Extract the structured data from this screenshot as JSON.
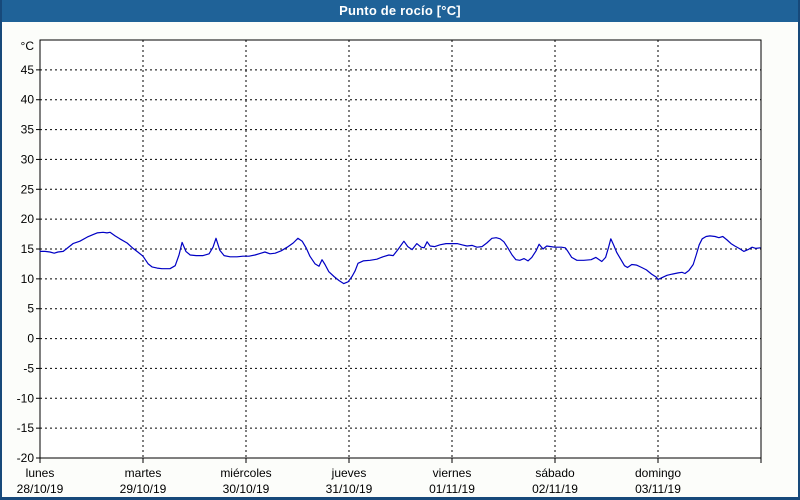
{
  "window": {
    "title": "Punto de rocío [°C]"
  },
  "colors": {
    "titlebar_bg": "#1F6298",
    "window_border": "#17497A",
    "panel_bg": "#FCFDFA",
    "plot_bg": "#FFFFFF",
    "plot_border": "#000000",
    "grid": "#000000",
    "line": "#0000C4",
    "text": "#000000",
    "title_text": "#FFFFFF"
  },
  "chart_data": {
    "type": "line",
    "title": "Punto de rocío [°C]",
    "ylabel": "°C",
    "unit_label": "°C",
    "ylim": [
      -20,
      50
    ],
    "y_ticks": [
      45,
      40,
      35,
      30,
      25,
      20,
      15,
      10,
      5,
      0,
      -5,
      -10,
      -15,
      -20
    ],
    "grid": true,
    "grid_style": "dashed",
    "x_range_hours": [
      0,
      168
    ],
    "x_day_ticks_hours": [
      0,
      24,
      48,
      72,
      96,
      120,
      144,
      168
    ],
    "x_labels": [
      {
        "day": "lunes",
        "date": "28/10/19",
        "hour": 0
      },
      {
        "day": "martes",
        "date": "29/10/19",
        "hour": 24
      },
      {
        "day": "miércoles",
        "date": "30/10/19",
        "hour": 48
      },
      {
        "day": "jueves",
        "date": "31/10/19",
        "hour": 72
      },
      {
        "day": "viernes",
        "date": "01/11/19",
        "hour": 96
      },
      {
        "day": "sábado",
        "date": "02/11/19",
        "hour": 120
      },
      {
        "day": "domingo",
        "date": "03/11/19",
        "hour": 144
      }
    ],
    "legend": "none",
    "series": [
      {
        "name": "Punto de rocío",
        "color": "#0000C4",
        "points_hour_degC": [
          [
            0,
            14.6
          ],
          [
            1.2,
            14.6
          ],
          [
            2.3,
            14.5
          ],
          [
            3.3,
            14.3
          ],
          [
            4.2,
            14.5
          ],
          [
            5.4,
            14.6
          ],
          [
            6.3,
            15.1
          ],
          [
            7.7,
            15.9
          ],
          [
            9.3,
            16.3
          ],
          [
            11,
            17.0
          ],
          [
            12.3,
            17.4
          ],
          [
            13.3,
            17.7
          ],
          [
            14.7,
            17.8
          ],
          [
            15.6,
            17.7
          ],
          [
            16.3,
            17.8
          ],
          [
            17.5,
            17.2
          ],
          [
            18.6,
            16.7
          ],
          [
            20.3,
            16.0
          ],
          [
            21.7,
            15.1
          ],
          [
            22.8,
            14.5
          ],
          [
            24,
            13.8
          ],
          [
            25.2,
            12.5
          ],
          [
            26.1,
            12.0
          ],
          [
            27.3,
            11.8
          ],
          [
            28.4,
            11.7
          ],
          [
            30.3,
            11.7
          ],
          [
            31.5,
            12.2
          ],
          [
            32.4,
            14.0
          ],
          [
            33.1,
            16.1
          ],
          [
            34,
            14.6
          ],
          [
            35,
            14.0
          ],
          [
            36.4,
            13.9
          ],
          [
            38,
            13.9
          ],
          [
            39.4,
            14.2
          ],
          [
            40.3,
            15.3
          ],
          [
            41,
            16.8
          ],
          [
            41.9,
            14.8
          ],
          [
            42.9,
            13.9
          ],
          [
            44.3,
            13.7
          ],
          [
            45.9,
            13.7
          ],
          [
            47.3,
            13.8
          ],
          [
            48.7,
            13.8
          ],
          [
            50.1,
            14.0
          ],
          [
            51.5,
            14.3
          ],
          [
            52.4,
            14.5
          ],
          [
            53.6,
            14.2
          ],
          [
            54.8,
            14.3
          ],
          [
            56.2,
            14.7
          ],
          [
            57.6,
            15.3
          ],
          [
            59,
            16.0
          ],
          [
            60.1,
            16.8
          ],
          [
            61.1,
            16.3
          ],
          [
            62,
            15.2
          ],
          [
            62.9,
            13.8
          ],
          [
            64.1,
            12.5
          ],
          [
            65,
            12.1
          ],
          [
            65.7,
            13.2
          ],
          [
            66.4,
            12.4
          ],
          [
            67.3,
            11.2
          ],
          [
            68.5,
            10.4
          ],
          [
            69.7,
            9.7
          ],
          [
            70.8,
            9.2
          ],
          [
            71.8,
            9.5
          ],
          [
            72.7,
            10.4
          ],
          [
            73.4,
            11.3
          ],
          [
            74.1,
            12.6
          ],
          [
            75.3,
            13.0
          ],
          [
            76.9,
            13.1
          ],
          [
            78.5,
            13.3
          ],
          [
            79.9,
            13.7
          ],
          [
            81.3,
            14.0
          ],
          [
            82.3,
            13.9
          ],
          [
            83.4,
            14.9
          ],
          [
            84.8,
            16.3
          ],
          [
            85.7,
            15.4
          ],
          [
            86.7,
            14.9
          ],
          [
            87.8,
            15.9
          ],
          [
            88.8,
            15.3
          ],
          [
            89.5,
            15.2
          ],
          [
            90.2,
            16.2
          ],
          [
            90.9,
            15.5
          ],
          [
            92,
            15.4
          ],
          [
            93.2,
            15.7
          ],
          [
            94.6,
            15.9
          ],
          [
            96,
            15.9
          ],
          [
            97.2,
            15.9
          ],
          [
            98.3,
            15.7
          ],
          [
            99.5,
            15.5
          ],
          [
            100.7,
            15.6
          ],
          [
            101.8,
            15.3
          ],
          [
            103,
            15.4
          ],
          [
            104.1,
            16.0
          ],
          [
            105.3,
            16.8
          ],
          [
            106.3,
            16.9
          ],
          [
            107.2,
            16.7
          ],
          [
            108.1,
            16.2
          ],
          [
            109,
            15.2
          ],
          [
            110,
            14.0
          ],
          [
            110.9,
            13.2
          ],
          [
            111.8,
            13.1
          ],
          [
            112.8,
            13.4
          ],
          [
            113.7,
            13.0
          ],
          [
            114.6,
            13.6
          ],
          [
            115.6,
            14.7
          ],
          [
            116.3,
            15.8
          ],
          [
            117.2,
            15.0
          ],
          [
            118.1,
            15.5
          ],
          [
            119,
            15.4
          ],
          [
            120,
            15.3
          ],
          [
            121.5,
            15.3
          ],
          [
            122.4,
            15.2
          ],
          [
            123,
            14.6
          ],
          [
            123.9,
            13.6
          ],
          [
            125.1,
            13.1
          ],
          [
            126.7,
            13.1
          ],
          [
            128.4,
            13.2
          ],
          [
            129.5,
            13.6
          ],
          [
            130.9,
            12.9
          ],
          [
            131.8,
            13.6
          ],
          [
            132.5,
            15.3
          ],
          [
            133,
            16.7
          ],
          [
            133.7,
            15.6
          ],
          [
            134.4,
            14.4
          ],
          [
            135.3,
            13.3
          ],
          [
            136.2,
            12.2
          ],
          [
            136.9,
            11.9
          ],
          [
            137.9,
            12.4
          ],
          [
            139,
            12.3
          ],
          [
            140.2,
            11.9
          ],
          [
            141.3,
            11.5
          ],
          [
            142.5,
            10.8
          ],
          [
            143.6,
            10.3
          ],
          [
            144,
            9.9
          ],
          [
            144.9,
            10.2
          ],
          [
            146.1,
            10.6
          ],
          [
            147.3,
            10.8
          ],
          [
            148.7,
            11.0
          ],
          [
            149.6,
            11.1
          ],
          [
            150.3,
            10.9
          ],
          [
            151.2,
            11.4
          ],
          [
            152.2,
            12.4
          ],
          [
            152.9,
            14.0
          ],
          [
            153.6,
            15.7
          ],
          [
            154.3,
            16.7
          ],
          [
            155.2,
            17.1
          ],
          [
            156.1,
            17.2
          ],
          [
            157.3,
            17.1
          ],
          [
            158.2,
            16.9
          ],
          [
            159.1,
            17.1
          ],
          [
            160.1,
            16.5
          ],
          [
            161,
            15.9
          ],
          [
            161.9,
            15.5
          ],
          [
            162.9,
            15.1
          ],
          [
            164,
            14.6
          ],
          [
            165,
            14.9
          ],
          [
            165.9,
            15.3
          ],
          [
            166.8,
            15.1
          ],
          [
            167.8,
            15.2
          ]
        ]
      }
    ]
  }
}
